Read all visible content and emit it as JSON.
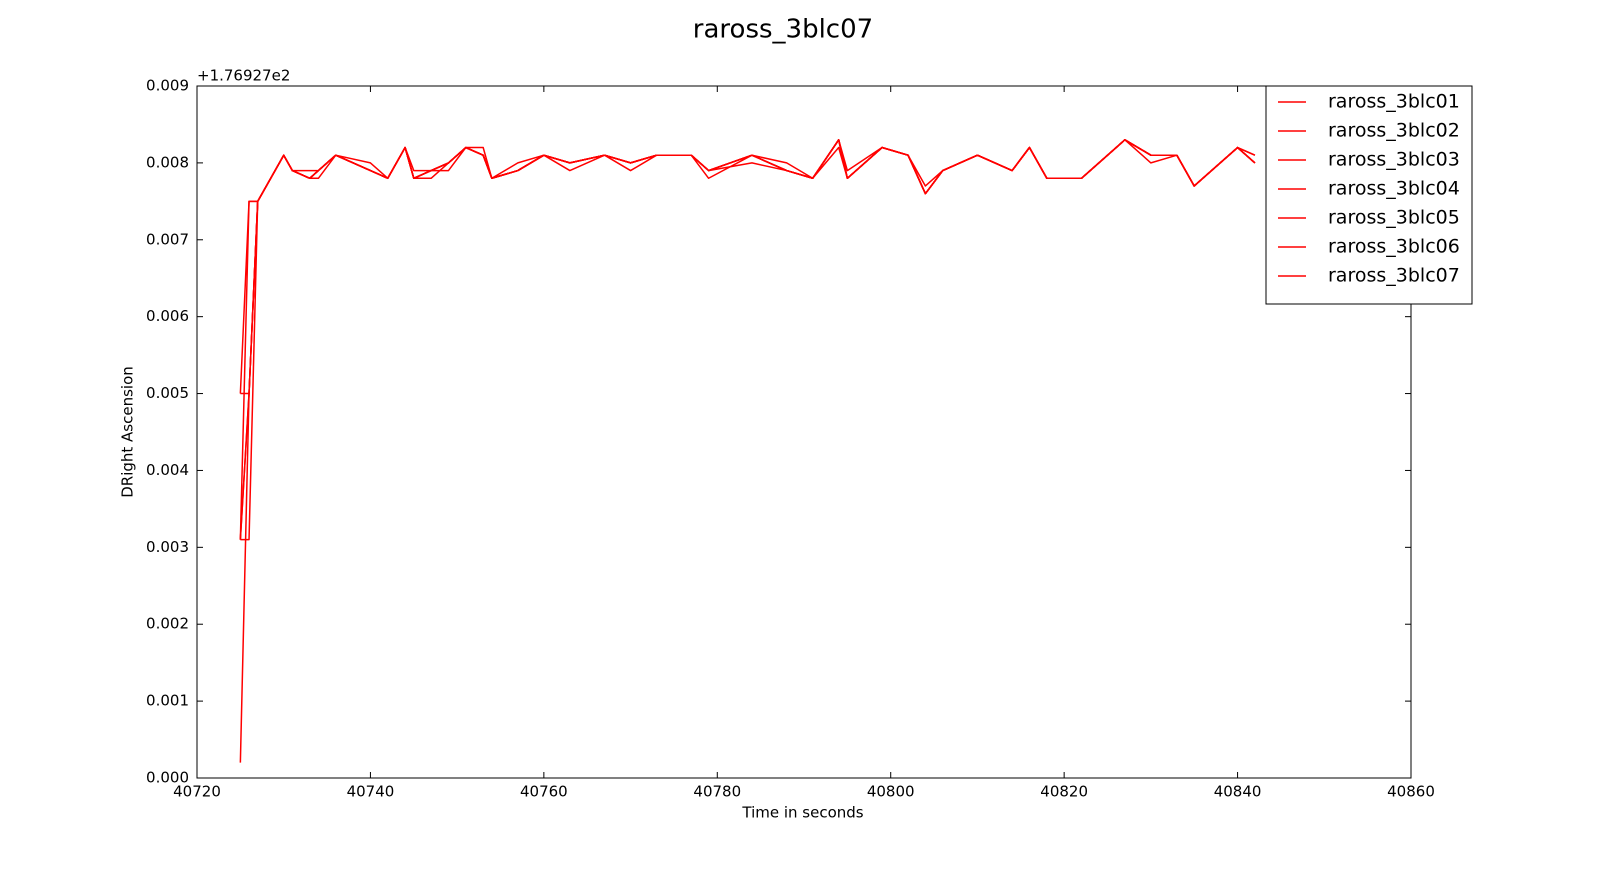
{
  "chart_data": {
    "type": "line",
    "title": "raross_3blc07",
    "xlabel": "Time in seconds",
    "ylabel": "DRight Ascension",
    "offset_label": "+1.76927e2",
    "x": [
      40725,
      40726,
      40727,
      40730,
      40731,
      40733,
      40734,
      40736,
      40740,
      40742,
      40744,
      40745,
      40747,
      40749,
      40751,
      40753,
      40754,
      40757,
      40760,
      40763,
      40767,
      40770,
      40773,
      40777,
      40779,
      40784,
      40788,
      40791,
      40794,
      40795,
      40799,
      40802,
      40804,
      40806,
      40810,
      40814,
      40816,
      40818,
      40822,
      40826,
      40827,
      40830,
      40833,
      40835,
      40837,
      40840,
      40842
    ],
    "series": [
      {
        "name": "raross_3blc01",
        "color": "#ff0000",
        "values": [
          0.0031,
          0.005,
          0.0075,
          0.0081,
          0.0079,
          0.0078,
          0.0079,
          0.0081,
          0.0079,
          0.0078,
          0.0082,
          0.0078,
          0.0079,
          0.008,
          0.0082,
          0.0081,
          0.0078,
          0.0079,
          0.0081,
          0.008,
          0.0081,
          0.008,
          0.0081,
          0.0081,
          0.0079,
          0.0081,
          0.0079,
          0.0078,
          0.0083,
          0.0078,
          0.0082,
          0.0081,
          0.0076,
          0.0079,
          0.0081,
          0.0079,
          0.0082,
          0.0078,
          0.0078,
          0.0082,
          0.0083,
          0.0081,
          0.0081,
          0.0077,
          0.0079,
          0.0082,
          0.008
        ]
      },
      {
        "name": "raross_3blc02",
        "color": "#ff0000",
        "values": [
          0.0031,
          0.0031,
          0.0075,
          0.0081,
          0.0079,
          0.0078,
          0.0079,
          0.0081,
          0.008,
          0.0078,
          0.0082,
          0.0078,
          0.0079,
          0.008,
          0.0082,
          0.0082,
          0.0078,
          0.008,
          0.0081,
          0.0079,
          0.0081,
          0.008,
          0.0081,
          0.0081,
          0.0079,
          0.008,
          0.0079,
          0.0078,
          0.0083,
          0.0079,
          0.0082,
          0.0081,
          0.0076,
          0.0079,
          0.0081,
          0.0079,
          0.0082,
          0.0078,
          0.0078,
          0.0082,
          0.0083,
          0.008,
          0.0081,
          0.0077,
          0.0079,
          0.0082,
          0.0081
        ]
      },
      {
        "name": "raross_3blc03",
        "color": "#ff0000",
        "values": [
          0.005,
          0.005,
          0.0075,
          0.0081,
          0.0079,
          0.0078,
          0.0078,
          0.0081,
          0.0079,
          0.0078,
          0.0082,
          0.0079,
          0.0079,
          0.008,
          0.0082,
          0.0081,
          0.0078,
          0.0079,
          0.0081,
          0.008,
          0.0081,
          0.008,
          0.0081,
          0.0081,
          0.0078,
          0.0081,
          0.008,
          0.0078,
          0.0083,
          0.0078,
          0.0082,
          0.0081,
          0.0076,
          0.0079,
          0.0081,
          0.0079,
          0.0082,
          0.0078,
          0.0078,
          0.0082,
          0.0083,
          0.0081,
          0.0081,
          0.0077,
          0.0079,
          0.0082,
          0.008
        ]
      },
      {
        "name": "raross_3blc04",
        "color": "#ff0000",
        "values": [
          0.0031,
          0.005,
          0.0075,
          0.0081,
          0.0079,
          0.0079,
          0.0079,
          0.0081,
          0.0079,
          0.0078,
          0.0082,
          0.0078,
          0.0079,
          0.0079,
          0.0082,
          0.0081,
          0.0078,
          0.0079,
          0.0081,
          0.008,
          0.0081,
          0.0079,
          0.0081,
          0.0081,
          0.0079,
          0.0081,
          0.0079,
          0.0078,
          0.0082,
          0.0078,
          0.0082,
          0.0081,
          0.0076,
          0.0079,
          0.0081,
          0.0079,
          0.0082,
          0.0078,
          0.0078,
          0.0082,
          0.0083,
          0.0081,
          0.0081,
          0.0077,
          0.0079,
          0.0082,
          0.008
        ]
      },
      {
        "name": "raross_3blc05",
        "color": "#ff0000",
        "values": [
          0.005,
          0.0075,
          0.0075,
          0.0081,
          0.0079,
          0.0078,
          0.0079,
          0.0081,
          0.0079,
          0.0078,
          0.0082,
          0.0078,
          0.0079,
          0.008,
          0.0082,
          0.0081,
          0.0078,
          0.0079,
          0.0081,
          0.008,
          0.0081,
          0.008,
          0.0081,
          0.0081,
          0.0079,
          0.0081,
          0.0079,
          0.0078,
          0.0083,
          0.0078,
          0.0082,
          0.0081,
          0.0077,
          0.0079,
          0.0081,
          0.0079,
          0.0082,
          0.0078,
          0.0078,
          0.0082,
          0.0083,
          0.0081,
          0.0081,
          0.0077,
          0.0079,
          0.0082,
          0.0081
        ]
      },
      {
        "name": "raross_3blc06",
        "color": "#ff0000",
        "values": [
          0.0031,
          0.0075,
          0.0075,
          0.0081,
          0.0079,
          0.0078,
          0.0079,
          0.0081,
          0.0079,
          0.0078,
          0.0082,
          0.0078,
          0.0078,
          0.008,
          0.0082,
          0.0081,
          0.0078,
          0.0079,
          0.0081,
          0.008,
          0.0081,
          0.008,
          0.0081,
          0.0081,
          0.0079,
          0.0081,
          0.0079,
          0.0078,
          0.0083,
          0.0078,
          0.0082,
          0.0081,
          0.0076,
          0.0079,
          0.0081,
          0.0079,
          0.0082,
          0.0078,
          0.0078,
          0.0082,
          0.0083,
          0.0081,
          0.0081,
          0.0077,
          0.0079,
          0.0082,
          0.008
        ]
      },
      {
        "name": "raross_3blc07",
        "color": "#ff0000",
        "values": [
          0.0002,
          0.005,
          0.0075,
          0.0081,
          0.0079,
          0.0078,
          0.0079,
          0.0081,
          0.0079,
          0.0078,
          0.0082,
          0.0078,
          0.0079,
          0.008,
          0.0082,
          0.0081,
          0.0078,
          0.0079,
          0.0081,
          0.008,
          0.0081,
          0.008,
          0.0081,
          0.0081,
          0.0079,
          0.0081,
          0.0079,
          0.0078,
          0.0083,
          0.0078,
          0.0082,
          0.0081,
          0.0076,
          0.0079,
          0.0081,
          0.0079,
          0.0082,
          0.0078,
          0.0078,
          0.0082,
          0.0083,
          0.0081,
          0.0081,
          0.0077,
          0.0079,
          0.0082,
          0.008
        ]
      }
    ],
    "xlim": [
      40720,
      40860
    ],
    "xticks": [
      40720,
      40740,
      40760,
      40780,
      40800,
      40820,
      40840,
      40860
    ],
    "ylim": [
      0,
      0.009
    ],
    "yticks": [
      {
        "value": 0,
        "label": "0.000"
      },
      {
        "value": 0.001,
        "label": "0.001"
      },
      {
        "value": 0.002,
        "label": "0.002"
      },
      {
        "value": 0.003,
        "label": "0.003"
      },
      {
        "value": 0.004,
        "label": "0.004"
      },
      {
        "value": 0.005,
        "label": "0.005"
      },
      {
        "value": 0.006,
        "label": "0.006"
      },
      {
        "value": 0.007,
        "label": "0.007"
      },
      {
        "value": 0.008,
        "label": "0.008"
      },
      {
        "value": 0.009,
        "label": "0.009"
      }
    ],
    "grid": false,
    "legend": "upper right"
  }
}
